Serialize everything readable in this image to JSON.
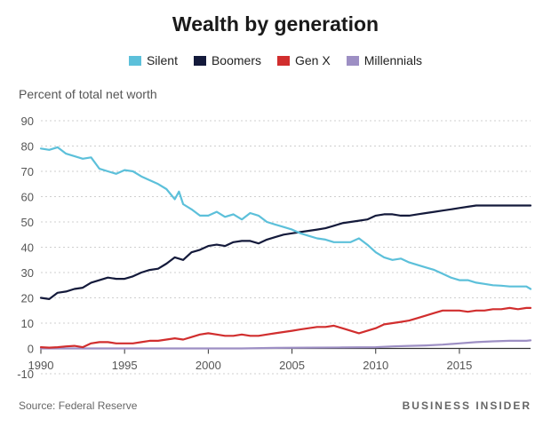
{
  "header": {
    "title": "Wealth by generation"
  },
  "footer": {
    "source": "Source: Federal Reserve",
    "brand": "BUSINESS INSIDER"
  },
  "chart_data": {
    "type": "line",
    "title": "Wealth by generation",
    "ylabel": "Percent of total net worth",
    "xlabel": "",
    "xlim": [
      1990,
      2019.25
    ],
    "ylim": [
      -10,
      90
    ],
    "yticks": [
      90,
      80,
      70,
      60,
      50,
      40,
      30,
      20,
      10,
      0,
      -10
    ],
    "xticks": [
      1990,
      1995,
      2000,
      2005,
      2010,
      2015
    ],
    "grid": "horizontal dashed",
    "legend": "top-center",
    "series": [
      {
        "name": "Silent",
        "color": "#5cc0da",
        "x": [
          1990,
          1990.5,
          1991,
          1991.5,
          1992,
          1992.5,
          1993,
          1993.5,
          1994,
          1994.5,
          1995,
          1995.5,
          1996,
          1996.5,
          1997,
          1997.5,
          1998,
          1998.25,
          1998.5,
          1999,
          1999.5,
          2000,
          2000.5,
          2001,
          2001.5,
          2002,
          2002.5,
          2003,
          2003.5,
          2004,
          2004.5,
          2005,
          2005.5,
          2006,
          2006.5,
          2007,
          2007.5,
          2008,
          2008.5,
          2009,
          2009.5,
          2010,
          2010.5,
          2011,
          2011.5,
          2012,
          2012.5,
          2013,
          2013.5,
          2014,
          2014.5,
          2015,
          2015.5,
          2016,
          2016.5,
          2017,
          2017.5,
          2018,
          2018.5,
          2019,
          2019.25
        ],
        "y": [
          79,
          78.5,
          79.5,
          77,
          76,
          75,
          75.5,
          71,
          70,
          69,
          70.5,
          70,
          68,
          66.5,
          65,
          63,
          59,
          62,
          57,
          55,
          52.5,
          52.5,
          54,
          52,
          53,
          51,
          53.5,
          52.5,
          50,
          49,
          48,
          47,
          45.5,
          44.5,
          43.5,
          43,
          42,
          42,
          42,
          43.5,
          41,
          38,
          36,
          35,
          35.5,
          34,
          33,
          32,
          31,
          29.5,
          28,
          27,
          27,
          26,
          25.5,
          25,
          24.8,
          24.5,
          24.5,
          24.5,
          23.5
        ]
      },
      {
        "name": "Boomers",
        "color": "#141a3b",
        "x": [
          1990,
          1990.5,
          1991,
          1991.5,
          1992,
          1992.5,
          1993,
          1993.5,
          1994,
          1994.5,
          1995,
          1995.5,
          1996,
          1996.5,
          1997,
          1997.5,
          1998,
          1998.5,
          1999,
          1999.5,
          2000,
          2000.5,
          2001,
          2001.5,
          2002,
          2002.5,
          2003,
          2003.5,
          2004,
          2004.5,
          2005,
          2005.5,
          2006,
          2006.5,
          2007,
          2007.5,
          2008,
          2008.5,
          2009,
          2009.5,
          2010,
          2010.5,
          2011,
          2011.5,
          2012,
          2012.5,
          2013,
          2013.5,
          2014,
          2014.5,
          2015,
          2015.5,
          2016,
          2016.5,
          2017,
          2017.5,
          2018,
          2018.5,
          2019,
          2019.25
        ],
        "y": [
          20,
          19.5,
          22,
          22.5,
          23.5,
          24,
          26,
          27,
          28,
          27.5,
          27.5,
          28.5,
          30,
          31,
          31.5,
          33.5,
          36,
          35,
          38,
          39,
          40.5,
          41,
          40.5,
          42,
          42.5,
          42.5,
          41.5,
          43,
          44,
          45,
          45.5,
          46,
          46.5,
          47,
          47.5,
          48.5,
          49.5,
          50,
          50.5,
          51,
          52.5,
          53,
          53,
          52.5,
          52.5,
          53,
          53.5,
          54,
          54.5,
          55,
          55.5,
          56,
          56.5,
          56.5,
          56.5,
          56.5,
          56.5,
          56.5,
          56.5,
          56.5
        ]
      },
      {
        "name": "Gen X",
        "color": "#d12e2e",
        "x": [
          1990,
          1990.5,
          1991,
          1991.5,
          1992,
          1992.5,
          1993,
          1993.5,
          1994,
          1994.5,
          1995,
          1995.5,
          1996,
          1996.5,
          1997,
          1997.5,
          1998,
          1998.5,
          1999,
          1999.5,
          2000,
          2000.5,
          2001,
          2001.5,
          2002,
          2002.5,
          2003,
          2003.5,
          2004,
          2004.5,
          2005,
          2005.5,
          2006,
          2006.5,
          2007,
          2007.5,
          2008,
          2008.5,
          2009,
          2009.5,
          2010,
          2010.5,
          2011,
          2011.5,
          2012,
          2012.5,
          2013,
          2013.5,
          2014,
          2014.5,
          2015,
          2015.5,
          2016,
          2016.5,
          2017,
          2017.5,
          2018,
          2018.5,
          2019,
          2019.25
        ],
        "y": [
          0.5,
          0.3,
          0.5,
          0.8,
          1,
          0.5,
          2,
          2.5,
          2.5,
          2,
          2,
          2,
          2.5,
          3,
          3,
          3.5,
          4,
          3.5,
          4.5,
          5.5,
          6,
          5.5,
          5,
          5,
          5.5,
          5,
          5,
          5.5,
          6,
          6.5,
          7,
          7.5,
          8,
          8.5,
          8.5,
          9,
          8,
          7,
          6,
          7,
          8,
          9.5,
          10,
          10.5,
          11,
          12,
          13,
          14,
          15,
          15,
          15,
          14.5,
          15,
          15,
          15.5,
          15.5,
          16,
          15.5,
          16,
          16
        ]
      },
      {
        "name": "Millennials",
        "color": "#9d8fc4",
        "x": [
          1990,
          1995,
          2000,
          2002,
          2004,
          2006,
          2008,
          2010,
          2011,
          2012,
          2013,
          2014,
          2015,
          2016,
          2017,
          2018,
          2019,
          2019.25
        ],
        "y": [
          0,
          0,
          0,
          0,
          0.2,
          0.3,
          0.4,
          0.5,
          0.8,
          1,
          1.2,
          1.5,
          2,
          2.5,
          2.8,
          3,
          3,
          3.2
        ]
      }
    ]
  }
}
